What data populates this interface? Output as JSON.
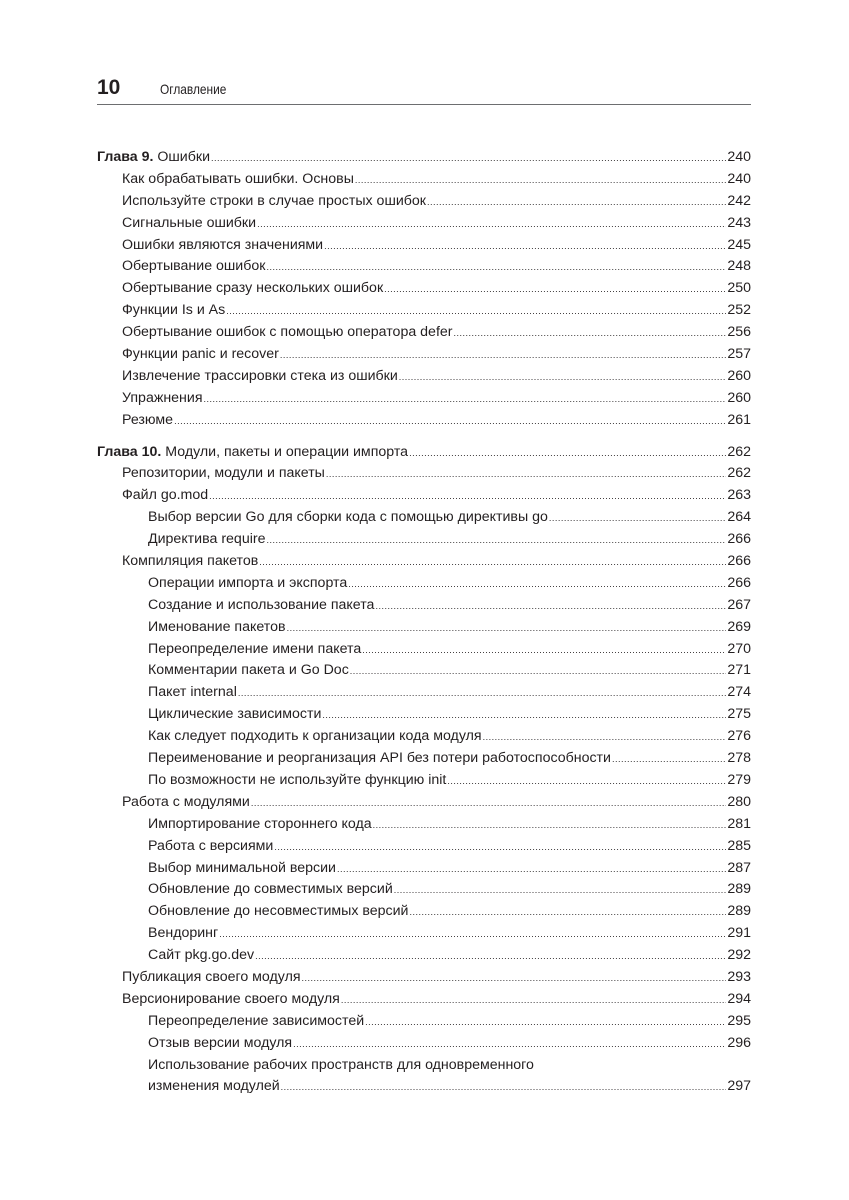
{
  "header": {
    "page_number": "10",
    "title": "Оглавление"
  },
  "chapters": [
    {
      "label": "Глава 9.",
      "title": "Ошибки",
      "page": "240",
      "entries": [
        {
          "level": 1,
          "title": "Как обрабатывать ошибки. Основы",
          "page": "240"
        },
        {
          "level": 1,
          "title": "Используйте строки в случае простых ошибок",
          "page": "242"
        },
        {
          "level": 1,
          "title": "Сигнальные ошибки",
          "page": "243"
        },
        {
          "level": 1,
          "title": "Ошибки являются значениями",
          "page": "245"
        },
        {
          "level": 1,
          "title": "Обертывание ошибок",
          "page": "248"
        },
        {
          "level": 1,
          "title": "Обертывание сразу нескольких ошибок",
          "page": "250"
        },
        {
          "level": 1,
          "title": "Функции Is и As",
          "page": "252"
        },
        {
          "level": 1,
          "title": "Обертывание ошибок с помощью оператора defer",
          "page": "256"
        },
        {
          "level": 1,
          "title": "Функции panic и recover",
          "page": "257"
        },
        {
          "level": 1,
          "title": "Извлечение трассировки стека из ошибки",
          "page": "260"
        },
        {
          "level": 1,
          "title": "Упражнения",
          "page": "260"
        },
        {
          "level": 1,
          "title": "Резюме",
          "page": "261"
        }
      ]
    },
    {
      "label": "Глава 10.",
      "title": "Модули, пакеты и операции импорта",
      "page": "262",
      "entries": [
        {
          "level": 1,
          "title": "Репозитории, модули и пакеты",
          "page": "262"
        },
        {
          "level": 1,
          "title": "Файл go.mod",
          "page": "263"
        },
        {
          "level": 2,
          "title": "Выбор версии Go для сборки кода с помощью директивы go",
          "page": "264"
        },
        {
          "level": 2,
          "title": "Директива require",
          "page": "266"
        },
        {
          "level": 1,
          "title": "Компиляция пакетов",
          "page": "266"
        },
        {
          "level": 2,
          "title": "Операции импорта и экспорта",
          "page": "266"
        },
        {
          "level": 2,
          "title": "Создание и использование пакета",
          "page": "267"
        },
        {
          "level": 2,
          "title": "Именование пакетов",
          "page": "269"
        },
        {
          "level": 2,
          "title": "Переопределение имени пакета",
          "page": "270"
        },
        {
          "level": 2,
          "title": "Комментарии пакета и Go Doc",
          "page": "271"
        },
        {
          "level": 2,
          "title": "Пакет internal",
          "page": "274"
        },
        {
          "level": 2,
          "title": "Циклические зависимости",
          "page": "275"
        },
        {
          "level": 2,
          "title": "Как следует подходить к организации кода модуля",
          "page": "276"
        },
        {
          "level": 2,
          "title": "Переименование и реорганизация API без потери работоспособности",
          "page": "278"
        },
        {
          "level": 2,
          "title": "По возможности не используйте функцию init",
          "page": "279"
        },
        {
          "level": 1,
          "title": "Работа с модулями",
          "page": "280"
        },
        {
          "level": 2,
          "title": "Импортирование стороннего кода",
          "page": "281"
        },
        {
          "level": 2,
          "title": "Работа с версиями",
          "page": "285"
        },
        {
          "level": 2,
          "title": "Выбор минимальной версии",
          "page": "287"
        },
        {
          "level": 2,
          "title": "Обновление до совместимых версий",
          "page": "289"
        },
        {
          "level": 2,
          "title": "Обновление до несовместимых версий",
          "page": "289"
        },
        {
          "level": 2,
          "title": "Вендоринг",
          "page": "291"
        },
        {
          "level": 2,
          "title": "Сайт pkg.go.dev",
          "page": "292"
        },
        {
          "level": 1,
          "title": "Публикация своего модуля",
          "page": "293"
        },
        {
          "level": 1,
          "title": "Версионирование своего модуля",
          "page": "294"
        },
        {
          "level": 2,
          "title": "Переопределение зависимостей",
          "page": "295"
        },
        {
          "level": 2,
          "title": "Отзыв версии модуля",
          "page": "296"
        },
        {
          "level": 2,
          "title": "Использование рабочих пространств для одновременного",
          "title_cont": "изменения модулей",
          "page": "297"
        }
      ]
    }
  ]
}
